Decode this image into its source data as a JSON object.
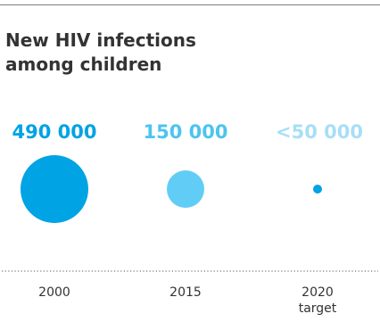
{
  "chart_data": {
    "type": "bubble",
    "title_lines": [
      "New HIV infections",
      "among children"
    ],
    "categories": [
      {
        "lines": [
          "2000"
        ]
      },
      {
        "lines": [
          "2015"
        ]
      },
      {
        "lines": [
          "2020",
          "target"
        ]
      }
    ],
    "series": [
      {
        "values": [
          490000,
          150000,
          50000
        ],
        "labels": [
          "490 000",
          "150 000",
          "<50 000"
        ],
        "label_colors": [
          "#00a3e4",
          "#4dc3f0",
          "#a8def6"
        ],
        "bubble_colors": [
          "#00a3e4",
          "#61cdf6",
          "#00a3e4"
        ]
      }
    ]
  }
}
